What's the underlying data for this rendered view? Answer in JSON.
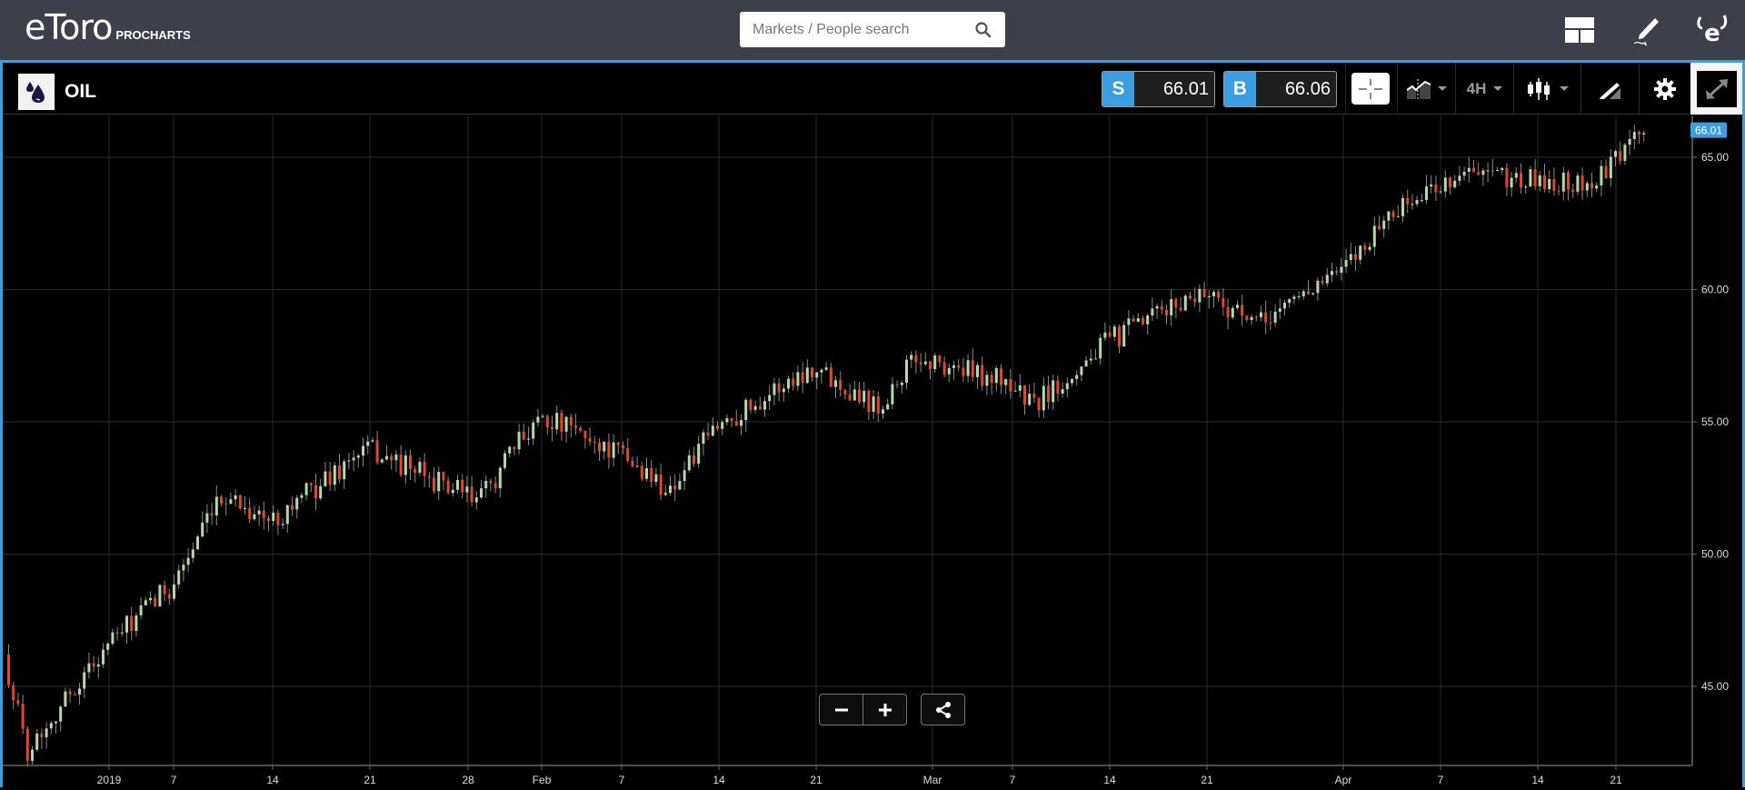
{
  "topbar": {
    "logo_text": "eToro",
    "logo_sub": "PROCHARTS",
    "search": {
      "placeholder": "Markets / People search",
      "value": "",
      "icon": "search-icon"
    },
    "icons": [
      "layout-icon",
      "pencil-signature-icon",
      "etoro-e-icon"
    ]
  },
  "instrument": {
    "name": "OIL",
    "icon": "oil-drops-icon",
    "sell_label": "S",
    "sell_price": "66.01",
    "buy_label": "B",
    "buy_price": "66.06"
  },
  "toolbar": {
    "crosshair": "crosshair-icon",
    "indicators": "indicators-icon",
    "timeframe": "4H",
    "chart_type": "candlestick-icon",
    "drawing": "drawing-tools-icon",
    "settings": "gear-icon",
    "fullscreen": "expand-icon"
  },
  "controls": {
    "zoom_out": "minus-icon",
    "zoom_in": "plus-icon",
    "share": "share-icon"
  },
  "colors": {
    "accent": "#3a9ee0",
    "up_candle": "#b5d9a6",
    "down_candle": "#e0482a",
    "wick": "#8a8a8a",
    "topbar_bg": "#3d404b"
  },
  "chart_data": {
    "type": "candlestick",
    "title": "OIL",
    "timeframe": "4H",
    "current_price_label": "66.01",
    "y_ticks": [
      "65.00",
      "60.00",
      "55.00",
      "50.00",
      "45.00"
    ],
    "x_ticks": [
      "2019",
      "7",
      "14",
      "21",
      "28",
      "Feb",
      "7",
      "14",
      "21",
      "Mar",
      "7",
      "14",
      "21",
      "Apr",
      "7",
      "14",
      "21"
    ],
    "ylim": [
      42,
      66.5
    ],
    "grid": true,
    "trend_anchors_estimated": [
      {
        "x": "Dec 27",
        "y": 46.2
      },
      {
        "x": "Dec 31",
        "y": 42.6
      },
      {
        "x": "2019",
        "y": 46.5
      },
      {
        "x": "Jan 7",
        "y": 48.8
      },
      {
        "x": "Jan 11",
        "y": 52.3
      },
      {
        "x": "Jan 14",
        "y": 51.2
      },
      {
        "x": "Jan 21",
        "y": 54.0
      },
      {
        "x": "Jan 28",
        "y": 52.0
      },
      {
        "x": "Feb 1",
        "y": 55.3
      },
      {
        "x": "Feb 7",
        "y": 53.8
      },
      {
        "x": "Feb 11",
        "y": 52.4
      },
      {
        "x": "Feb 14",
        "y": 54.8
      },
      {
        "x": "Feb 21",
        "y": 57.1
      },
      {
        "x": "Feb 26",
        "y": 55.6
      },
      {
        "x": "Feb 28",
        "y": 57.4
      },
      {
        "x": "Mar 7",
        "y": 56.5
      },
      {
        "x": "Mar 8",
        "y": 55.6
      },
      {
        "x": "Mar 14",
        "y": 58.0
      },
      {
        "x": "Mar 21",
        "y": 60.0
      },
      {
        "x": "Mar 25",
        "y": 58.6
      },
      {
        "x": "Mar 28",
        "y": 60.0
      },
      {
        "x": "Apr 1",
        "y": 60.6
      },
      {
        "x": "Apr 5",
        "y": 62.8
      },
      {
        "x": "Apr 9",
        "y": 64.4
      },
      {
        "x": "Apr 14",
        "y": 64.1
      },
      {
        "x": "Apr 19",
        "y": 64.0
      },
      {
        "x": "Apr 23",
        "y": 66.0
      }
    ]
  }
}
